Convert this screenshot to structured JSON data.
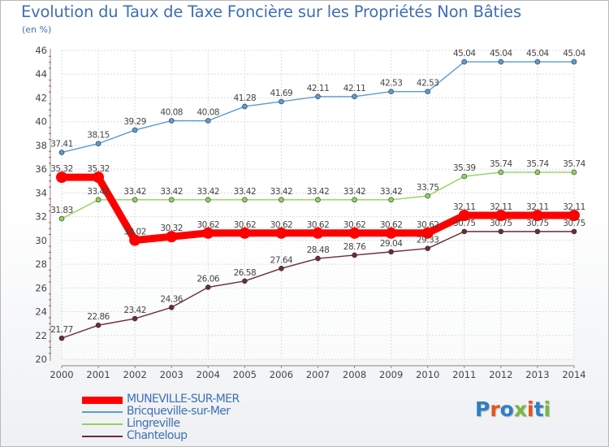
{
  "header": {
    "title": "Evolution du Taux de Taxe Foncière sur les Propriétés Non Bâties",
    "unit": "(en %)"
  },
  "brand": {
    "text": "Proxiti",
    "letter_colors": [
      "#2e7fc4",
      "#e2541e",
      "#2e7fc4",
      "#79b83c",
      "#e2541e",
      "#2e7fc4",
      "#79b83c"
    ]
  },
  "chart_data": {
    "type": "line",
    "title": "Evolution du Taux de Taxe Foncière sur les Propriétés Non Bâties",
    "ylabel": "(en %)",
    "xlabel": "",
    "x": [
      "2000",
      "2001",
      "2002",
      "2003",
      "2004",
      "2005",
      "2006",
      "2007",
      "2008",
      "2009",
      "2010",
      "2011",
      "2012",
      "2013",
      "2014"
    ],
    "ylim": [
      20,
      46
    ],
    "yticks": [
      "20",
      "22",
      "24",
      "26",
      "28",
      "30",
      "32",
      "34",
      "36",
      "38",
      "40",
      "42",
      "44",
      "46"
    ],
    "grid": true,
    "legend_position": "bottom-left",
    "series": [
      {
        "name": "Bricqueville-sur-Mer",
        "color": "#5b9bd5",
        "values": [
          37.41,
          38.15,
          39.29,
          40.08,
          40.08,
          41.28,
          41.69,
          42.11,
          42.11,
          42.53,
          42.53,
          45.04,
          45.04,
          45.04,
          45.04
        ],
        "labels": [
          "37.41",
          "38.15",
          "39.29",
          "40.08",
          "40.08",
          "41.28",
          "41.69",
          "42.11",
          "42.11",
          "42.53",
          "42.53",
          "45.04",
          "45.04",
          "45.04",
          "45.04"
        ]
      },
      {
        "name": "Lingreville",
        "color": "#8fd45a",
        "values": [
          31.83,
          33.42,
          33.42,
          33.42,
          33.42,
          33.42,
          33.42,
          33.42,
          33.42,
          33.42,
          33.75,
          35.39,
          35.74,
          35.74,
          35.74
        ],
        "labels": [
          "31.83",
          "33.42",
          "33.42",
          "33.42",
          "33.42",
          "33.42",
          "33.42",
          "33.42",
          "33.42",
          "33.42",
          "33.75",
          "35.39",
          "35.74",
          "35.74",
          "35.74"
        ]
      },
      {
        "name": "Chanteloup",
        "color": "#6b2d34",
        "values": [
          21.77,
          22.86,
          23.42,
          24.36,
          26.06,
          26.58,
          27.64,
          28.48,
          28.76,
          29.04,
          29.33,
          30.75,
          30.75,
          30.75,
          30.75
        ],
        "labels": [
          "21.77",
          "22.86",
          "23.42",
          "24.36",
          "26.06",
          "26.58",
          "27.64",
          "28.48",
          "28.76",
          "29.04",
          "29.33",
          "30.75",
          "30.75",
          "30.75",
          "30.75"
        ]
      },
      {
        "name": "MUNEVILLE-SUR-MER",
        "color": "#ff0000",
        "values": [
          35.32,
          35.32,
          30.02,
          30.32,
          30.62,
          30.62,
          30.62,
          30.62,
          30.62,
          30.62,
          30.62,
          32.11,
          32.11,
          32.11,
          32.11
        ],
        "labels": [
          "35.32",
          "35.32",
          "30.02",
          "30.32",
          "30.62",
          "30.62",
          "30.62",
          "30.62",
          "30.62",
          "30.62",
          "30.62",
          "32.11",
          "32.11",
          "32.11",
          "32.11"
        ]
      }
    ]
  },
  "legend": [
    {
      "name": "MUNEVILLE-SUR-MER",
      "color": "#ff0000"
    },
    {
      "name": "Bricqueville-sur-Mer",
      "color": "#5b9bd5"
    },
    {
      "name": "Lingreville",
      "color": "#8fd45a"
    },
    {
      "name": "Chanteloup",
      "color": "#6b2d34"
    }
  ]
}
